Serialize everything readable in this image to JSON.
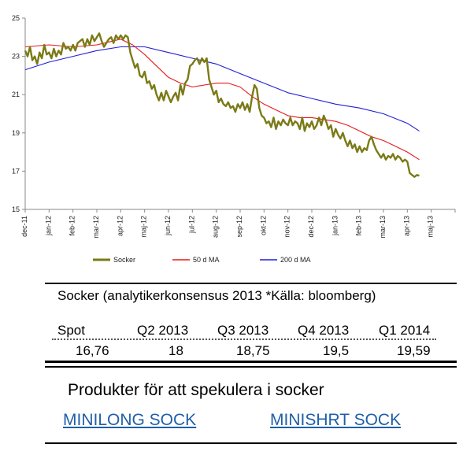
{
  "chart_data": {
    "type": "line",
    "ylim": [
      15,
      25
    ],
    "yticks": [
      15,
      17,
      19,
      21,
      23,
      25
    ],
    "xticks": [
      "dec-11",
      "jan-12",
      "feb-12",
      "mar-12",
      "apr-12",
      "maj-12",
      "jun-12",
      "jul-12",
      "aug-12",
      "sep-12",
      "okt-12",
      "nov-12",
      "dec-12",
      "jan-13",
      "feb-13",
      "mar-13",
      "apr-13",
      "maj-13"
    ],
    "grid": false,
    "legend_position": "bottom",
    "series": [
      {
        "name": "Socker",
        "color": "#7a7a16",
        "values": [
          [
            0,
            23.3
          ],
          [
            0.1,
            23.0
          ],
          [
            0.2,
            23.5
          ],
          [
            0.3,
            22.8
          ],
          [
            0.4,
            23.0
          ],
          [
            0.5,
            22.6
          ],
          [
            0.6,
            23.2
          ],
          [
            0.7,
            22.9
          ],
          [
            0.8,
            23.6
          ],
          [
            0.9,
            23.1
          ],
          [
            1.0,
            23.2
          ],
          [
            1.1,
            22.9
          ],
          [
            1.2,
            23.4
          ],
          [
            1.3,
            23.0
          ],
          [
            1.4,
            23.3
          ],
          [
            1.5,
            23.1
          ],
          [
            1.6,
            23.7
          ],
          [
            1.7,
            23.4
          ],
          [
            1.8,
            23.5
          ],
          [
            1.9,
            23.3
          ],
          [
            2.0,
            23.6
          ],
          [
            2.1,
            23.3
          ],
          [
            2.2,
            23.7
          ],
          [
            2.4,
            23.9
          ],
          [
            2.5,
            23.5
          ],
          [
            2.6,
            23.9
          ],
          [
            2.7,
            23.6
          ],
          [
            2.8,
            24.1
          ],
          [
            2.9,
            23.8
          ],
          [
            3.0,
            24.0
          ],
          [
            3.1,
            24.2
          ],
          [
            3.2,
            23.8
          ],
          [
            3.3,
            23.5
          ],
          [
            3.4,
            23.7
          ],
          [
            3.5,
            23.9
          ],
          [
            3.6,
            24.0
          ],
          [
            3.7,
            23.7
          ],
          [
            3.8,
            24.1
          ],
          [
            3.9,
            23.9
          ],
          [
            4.0,
            24.1
          ],
          [
            4.1,
            23.9
          ],
          [
            4.2,
            24.1
          ],
          [
            4.3,
            24.0
          ],
          [
            4.4,
            23.2
          ],
          [
            4.5,
            22.8
          ],
          [
            4.6,
            22.4
          ],
          [
            4.7,
            22.6
          ],
          [
            4.8,
            22.0
          ],
          [
            4.9,
            21.9
          ],
          [
            5.0,
            22.2
          ],
          [
            5.1,
            21.6
          ],
          [
            5.2,
            21.7
          ],
          [
            5.3,
            21.3
          ],
          [
            5.4,
            21.5
          ],
          [
            5.5,
            21.0
          ],
          [
            5.6,
            20.7
          ],
          [
            5.7,
            21.1
          ],
          [
            5.8,
            20.7
          ],
          [
            5.9,
            21.2
          ],
          [
            6.0,
            20.9
          ],
          [
            6.1,
            20.6
          ],
          [
            6.2,
            20.9
          ],
          [
            6.3,
            21.1
          ],
          [
            6.4,
            20.7
          ],
          [
            6.5,
            21.5
          ],
          [
            6.6,
            21.0
          ],
          [
            6.7,
            21.6
          ],
          [
            6.8,
            21.8
          ],
          [
            6.9,
            22.5
          ],
          [
            7.0,
            22.6
          ],
          [
            7.1,
            22.8
          ],
          [
            7.2,
            22.9
          ],
          [
            7.3,
            22.6
          ],
          [
            7.4,
            22.9
          ],
          [
            7.5,
            22.7
          ],
          [
            7.6,
            22.9
          ],
          [
            7.7,
            21.8
          ],
          [
            7.8,
            21.4
          ],
          [
            7.9,
            21.0
          ],
          [
            8.0,
            21.2
          ],
          [
            8.1,
            20.6
          ],
          [
            8.2,
            20.8
          ],
          [
            8.3,
            20.5
          ],
          [
            8.4,
            20.4
          ],
          [
            8.5,
            20.6
          ],
          [
            8.6,
            20.3
          ],
          [
            8.7,
            20.4
          ],
          [
            8.8,
            20.1
          ],
          [
            8.9,
            20.5
          ],
          [
            9.0,
            20.3
          ],
          [
            9.1,
            20.6
          ],
          [
            9.2,
            20.2
          ],
          [
            9.3,
            20.5
          ],
          [
            9.4,
            20.1
          ],
          [
            9.5,
            20.9
          ],
          [
            9.6,
            21.5
          ],
          [
            9.7,
            21.3
          ],
          [
            9.8,
            20.3
          ],
          [
            9.9,
            19.9
          ],
          [
            10.0,
            19.8
          ],
          [
            10.1,
            19.5
          ],
          [
            10.2,
            19.6
          ],
          [
            10.3,
            19.3
          ],
          [
            10.4,
            19.8
          ],
          [
            10.5,
            19.2
          ],
          [
            10.6,
            19.6
          ],
          [
            10.7,
            19.4
          ],
          [
            10.8,
            19.7
          ],
          [
            10.9,
            19.5
          ],
          [
            11.0,
            19.4
          ],
          [
            11.1,
            19.8
          ],
          [
            11.2,
            19.4
          ],
          [
            11.3,
            19.6
          ],
          [
            11.4,
            19.5
          ],
          [
            11.5,
            19.2
          ],
          [
            11.6,
            19.8
          ],
          [
            11.7,
            19.1
          ],
          [
            11.8,
            19.5
          ],
          [
            11.9,
            19.3
          ],
          [
            12.0,
            19.6
          ],
          [
            12.1,
            19.2
          ],
          [
            12.2,
            19.4
          ],
          [
            12.3,
            19.8
          ],
          [
            12.4,
            19.4
          ],
          [
            12.5,
            19.9
          ],
          [
            12.6,
            19.6
          ],
          [
            12.7,
            19.2
          ],
          [
            12.8,
            19.4
          ],
          [
            12.9,
            18.8
          ],
          [
            13.0,
            19.2
          ],
          [
            13.1,
            18.9
          ],
          [
            13.2,
            18.7
          ],
          [
            13.3,
            19.0
          ],
          [
            13.4,
            18.6
          ],
          [
            13.5,
            18.3
          ],
          [
            13.6,
            18.6
          ],
          [
            13.7,
            18.2
          ],
          [
            13.8,
            18.4
          ],
          [
            13.9,
            18.0
          ],
          [
            14.0,
            18.3
          ],
          [
            14.1,
            18.0
          ],
          [
            14.2,
            18.2
          ],
          [
            14.3,
            18.1
          ],
          [
            14.4,
            18.6
          ],
          [
            14.5,
            18.8
          ],
          [
            14.6,
            18.4
          ],
          [
            14.7,
            18.1
          ],
          [
            14.8,
            17.9
          ],
          [
            14.9,
            17.7
          ],
          [
            15.0,
            17.9
          ],
          [
            15.1,
            17.6
          ],
          [
            15.2,
            17.8
          ],
          [
            15.3,
            17.7
          ],
          [
            15.4,
            17.9
          ],
          [
            15.5,
            17.6
          ],
          [
            15.6,
            17.8
          ],
          [
            15.7,
            17.7
          ],
          [
            15.8,
            17.5
          ],
          [
            15.9,
            17.6
          ],
          [
            16.0,
            17.5
          ],
          [
            16.1,
            16.9
          ],
          [
            16.2,
            16.8
          ],
          [
            16.3,
            16.7
          ],
          [
            16.4,
            16.8
          ],
          [
            16.5,
            16.76
          ]
        ]
      },
      {
        "name": "50 d MA",
        "color": "#e8191a",
        "values": [
          [
            0,
            23.5
          ],
          [
            1,
            23.6
          ],
          [
            2,
            23.5
          ],
          [
            3,
            23.6
          ],
          [
            4,
            23.9
          ],
          [
            4.5,
            23.6
          ],
          [
            5,
            23.1
          ],
          [
            5.5,
            22.5
          ],
          [
            6,
            21.9
          ],
          [
            6.5,
            21.6
          ],
          [
            7,
            21.4
          ],
          [
            7.5,
            21.5
          ],
          [
            8,
            21.6
          ],
          [
            8.5,
            21.6
          ],
          [
            9,
            21.4
          ],
          [
            9.5,
            20.9
          ],
          [
            10,
            20.5
          ],
          [
            10.5,
            20.2
          ],
          [
            11,
            19.9
          ],
          [
            11.5,
            19.8
          ],
          [
            12,
            19.8
          ],
          [
            12.5,
            19.7
          ],
          [
            13,
            19.6
          ],
          [
            13.5,
            19.4
          ],
          [
            14,
            19.1
          ],
          [
            14.5,
            18.8
          ],
          [
            15,
            18.6
          ],
          [
            15.5,
            18.3
          ],
          [
            16,
            18.0
          ],
          [
            16.5,
            17.6
          ]
        ]
      },
      {
        "name": "200 d MA",
        "color": "#1f1fd6",
        "values": [
          [
            0,
            22.3
          ],
          [
            1,
            22.7
          ],
          [
            2,
            23.0
          ],
          [
            3,
            23.3
          ],
          [
            4,
            23.5
          ],
          [
            5,
            23.5
          ],
          [
            6,
            23.2
          ],
          [
            7,
            22.9
          ],
          [
            8,
            22.6
          ],
          [
            9,
            22.1
          ],
          [
            10,
            21.6
          ],
          [
            11,
            21.1
          ],
          [
            12,
            20.8
          ],
          [
            13,
            20.5
          ],
          [
            14,
            20.3
          ],
          [
            15,
            20.0
          ],
          [
            16,
            19.5
          ],
          [
            16.5,
            19.1
          ]
        ]
      }
    ]
  },
  "table": {
    "title": "Socker (analytikerkonsensus 2013 *Källa: bloomberg)",
    "headers": [
      "Spot",
      "Q2 2013",
      "Q3 2013",
      "Q4 2013",
      "Q1 2014"
    ],
    "values": [
      "16,76",
      "18",
      "18,75",
      "19,5",
      "19,59"
    ]
  },
  "products": {
    "heading": "Produkter för att spekulera i socker",
    "long_link": "MINILONG SOCK",
    "short_link": "MINISHRT SOCK"
  }
}
